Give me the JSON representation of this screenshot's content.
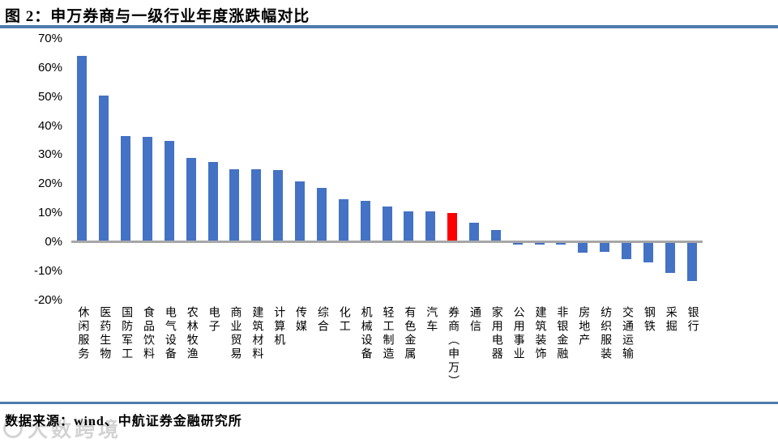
{
  "page": {
    "title": "图 2：申万券商与一级行业年度涨跌幅对比",
    "source_note": "数据来源：wind、中航证券金融研究所",
    "watermark": "大数跨境"
  },
  "colors": {
    "bar_blue": "#4472C4",
    "bar_highlight_red": "#FF0000",
    "rule_blue": "#4E7CAC",
    "axis_gray": "#A6A6A6"
  },
  "chart_data": {
    "type": "bar",
    "title": "申万券商与一级行业年度涨跌幅对比",
    "categories": [
      "休闲服务",
      "医药生物",
      "国防军工",
      "食品饮料",
      "电气设备",
      "农林牧渔",
      "电子",
      "商业贸易",
      "建筑材料",
      "计算机",
      "传媒",
      "综合",
      "化工",
      "机械设备",
      "轻工制造",
      "有色金属",
      "汽车",
      "券商（申万）",
      "通信",
      "家用电器",
      "公用事业",
      "建筑装饰",
      "非银金融",
      "房地产",
      "纺织服装",
      "交通运输",
      "钢铁",
      "采掘",
      "银行"
    ],
    "values": [
      64,
      50.5,
      36.5,
      36.3,
      34.8,
      29,
      27.6,
      25.1,
      25.1,
      24.9,
      21,
      18.8,
      14.9,
      14.3,
      12.3,
      10.6,
      10.6,
      10,
      6.7,
      4.1,
      -0.9,
      -0.9,
      -0.9,
      -3.5,
      -3.3,
      -5.9,
      -7,
      -10.7,
      -13.4
    ],
    "unit": "percent",
    "highlight_index": 17,
    "highlight_category": "券商（申万）",
    "ytick_labels": [
      "70%",
      "60%",
      "50%",
      "40%",
      "30%",
      "20%",
      "10%",
      "0%",
      "-10%",
      "-20%"
    ],
    "ytick_values": [
      70,
      60,
      50,
      40,
      30,
      20,
      10,
      0,
      -10,
      -20
    ],
    "ylim": [
      -20,
      70
    ],
    "xlabel": "",
    "ylabel": "",
    "grid": false,
    "legend": "none"
  }
}
